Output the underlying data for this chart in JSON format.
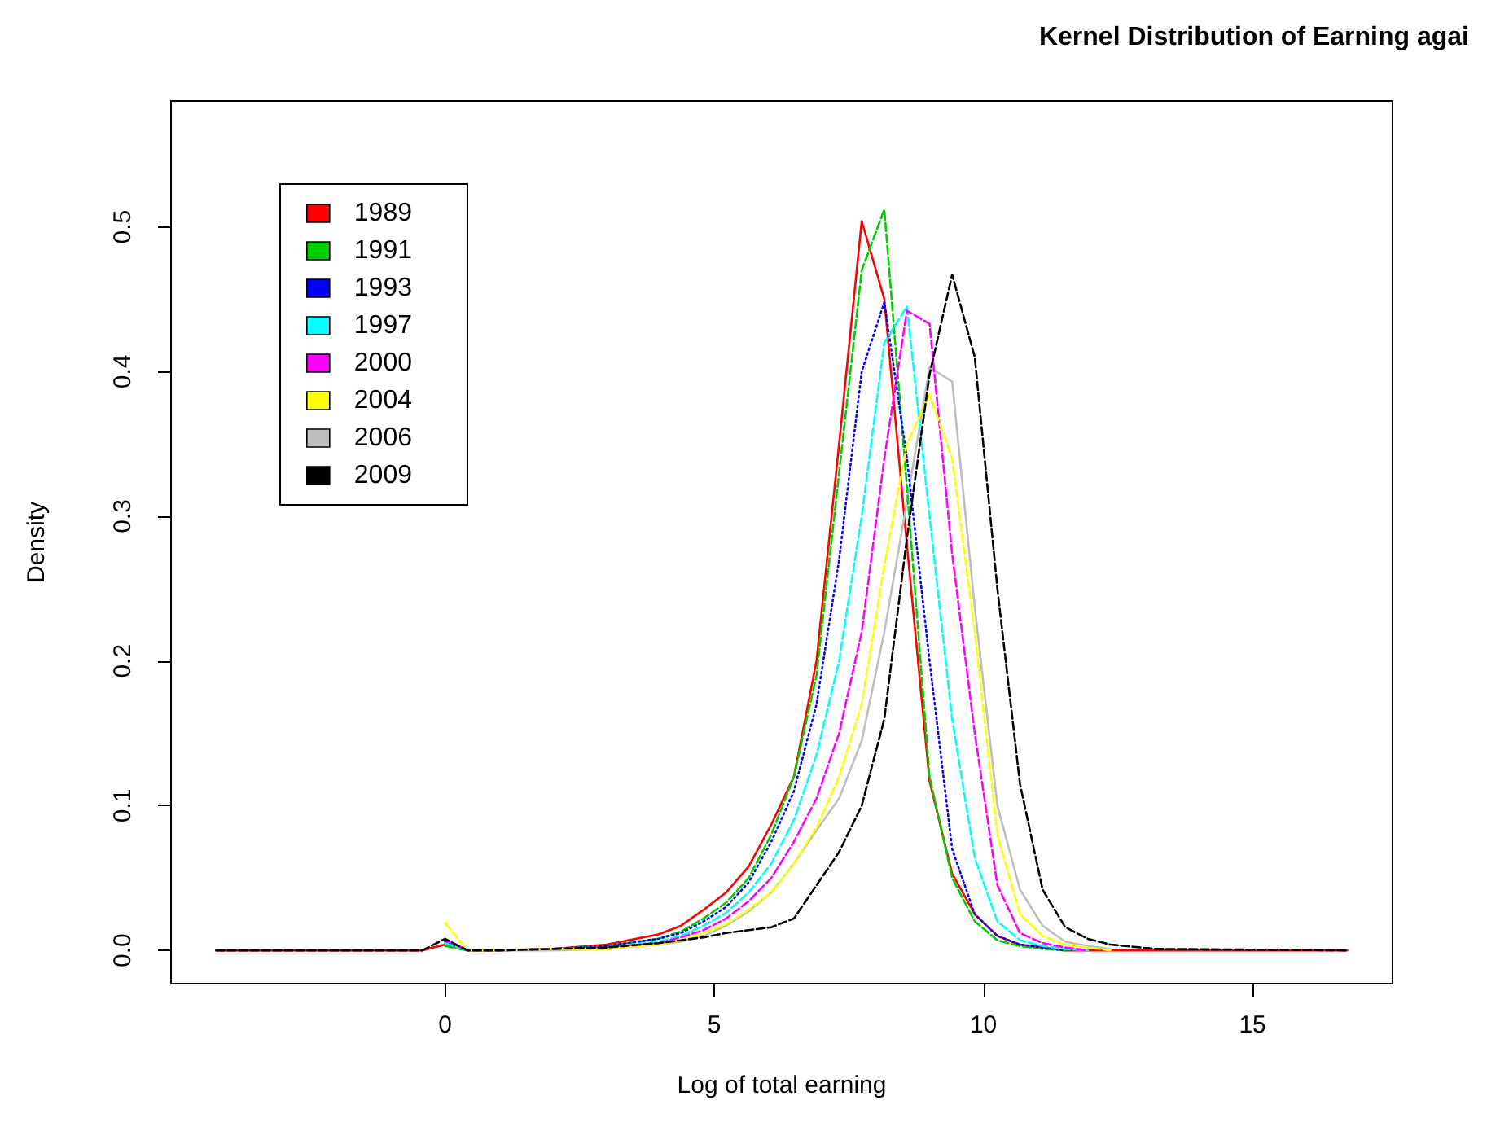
{
  "chart_data": {
    "type": "line",
    "title": "Kernel Distribution of Earning agai",
    "xlabel": "Log of total earning",
    "ylabel": "Density",
    "x": [
      -4.25,
      -0.42,
      0,
      0.42,
      1.0,
      2.0,
      3.0,
      3.96,
      4.38,
      4.8,
      5.22,
      5.64,
      6.06,
      6.48,
      6.9,
      7.32,
      7.74,
      8.16,
      8.58,
      9.0,
      9.42,
      9.84,
      10.26,
      10.68,
      11.1,
      11.52,
      11.94,
      12.36,
      13.2,
      16.76
    ],
    "series": [
      {
        "name": "1989",
        "color": "#ff0000",
        "line_style": "solid",
        "values": [
          0,
          0,
          0.004,
          0,
          0,
          0.001,
          0.004,
          0.011,
          0.017,
          0.028,
          0.04,
          0.058,
          0.087,
          0.12,
          0.2,
          0.35,
          0.504,
          0.45,
          0.28,
          0.117,
          0.053,
          0.025,
          0.01,
          0.004,
          0.002,
          0,
          0,
          0,
          0,
          0
        ]
      },
      {
        "name": "1991",
        "color": "#00cd00",
        "line_style": "dashed",
        "values": [
          null,
          null,
          0.003,
          0,
          0,
          0.001,
          0.003,
          0.008,
          0.013,
          0.022,
          0.033,
          0.05,
          0.08,
          0.12,
          0.19,
          0.33,
          0.47,
          0.512,
          0.32,
          0.12,
          0.05,
          0.02,
          0.007,
          0.003,
          0.001,
          0,
          null,
          null,
          null,
          null
        ]
      },
      {
        "name": "1993",
        "color": "#0000ff",
        "line_style": "dotted",
        "values": [
          null,
          null,
          0.006,
          0,
          0,
          0.001,
          0.003,
          0.008,
          0.012,
          0.02,
          0.03,
          0.047,
          0.075,
          0.11,
          0.17,
          0.27,
          0.4,
          0.448,
          0.34,
          0.2,
          0.07,
          0.025,
          0.01,
          0.004,
          0.002,
          0,
          null,
          null,
          null,
          null
        ]
      },
      {
        "name": "1997",
        "color": "#00ffff",
        "line_style": "dashed",
        "values": [
          null,
          null,
          0.005,
          0,
          0,
          0.001,
          0.002,
          0.006,
          0.01,
          0.017,
          0.026,
          0.04,
          0.06,
          0.09,
          0.135,
          0.2,
          0.3,
          0.42,
          0.445,
          0.3,
          0.16,
          0.064,
          0.02,
          0.007,
          0.003,
          0.001,
          0,
          null,
          null,
          null
        ]
      },
      {
        "name": "2000",
        "color": "#ff00ff",
        "line_style": "dashed",
        "values": [
          null,
          null,
          0.007,
          0,
          0,
          0.001,
          0.002,
          0.005,
          0.009,
          0.014,
          0.022,
          0.034,
          0.05,
          0.075,
          0.105,
          0.15,
          0.22,
          0.34,
          0.442,
          0.433,
          0.274,
          0.15,
          0.045,
          0.012,
          0.005,
          0.002,
          0,
          null,
          null,
          null
        ]
      },
      {
        "name": "2004",
        "color": "#ffff00",
        "line_style": "dashed",
        "values": [
          null,
          null,
          0.019,
          0,
          0,
          0.001,
          0.001,
          0.004,
          0.007,
          0.012,
          0.018,
          0.028,
          0.04,
          0.06,
          0.085,
          0.12,
          0.17,
          0.266,
          0.35,
          0.384,
          0.34,
          0.22,
          0.08,
          0.025,
          0.01,
          0.004,
          0.002,
          0,
          null,
          null
        ]
      },
      {
        "name": "2006",
        "color": "#bebebe",
        "line_style": "solid",
        "values": [
          null,
          null,
          0.007,
          0,
          0,
          0,
          0.001,
          0.004,
          0.006,
          0.01,
          0.017,
          0.027,
          0.04,
          0.06,
          0.083,
          0.105,
          0.145,
          0.22,
          0.31,
          0.403,
          0.393,
          0.237,
          0.1,
          0.042,
          0.017,
          0.006,
          0.003,
          0.001,
          null,
          null
        ]
      },
      {
        "name": "2009",
        "color": "#000000",
        "line_style": "dashed",
        "values": [
          0,
          0,
          0.008,
          0,
          0,
          0.001,
          0.002,
          0.005,
          0.007,
          0.009,
          0.012,
          0.014,
          0.016,
          0.022,
          0.045,
          0.068,
          0.1,
          0.16,
          0.285,
          0.398,
          0.467,
          0.41,
          0.25,
          0.115,
          0.042,
          0.016,
          0.008,
          0.004,
          0.001,
          0
        ]
      }
    ],
    "xlim": [
      -5.09,
      17.6
    ],
    "xticks": [
      0,
      5,
      10,
      15
    ],
    "ylim": [
      -0.023,
      0.587
    ],
    "yticks": [
      {
        "value": 0,
        "label": "0.0"
      },
      0.1,
      0.2,
      0.3,
      0.4,
      0.5
    ],
    "legend": "top left",
    "grid": false,
    "marker": "none"
  }
}
